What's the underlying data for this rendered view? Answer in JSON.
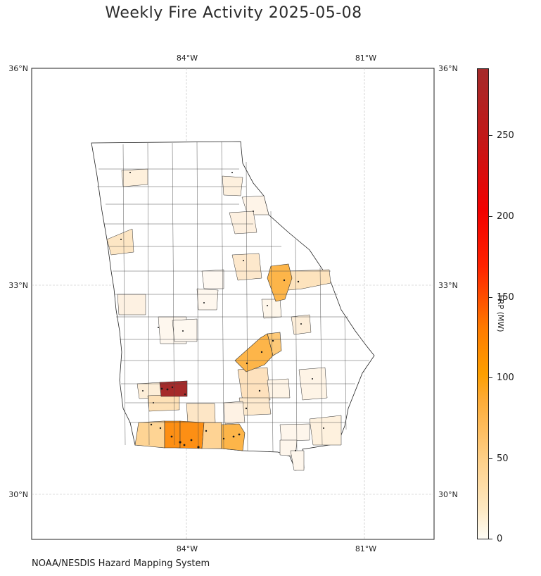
{
  "title": "Weekly Fire Activity 2025-05-08",
  "credit": "NOAA/NESDIS Hazard Mapping System",
  "map": {
    "region": "Georgia counties",
    "lon_range": [
      -86.6,
      -79.8
    ],
    "lat_range": [
      29.6,
      36.0
    ],
    "top_lon_labels": [
      "84°W",
      "81°W"
    ],
    "bottom_lon_labels": [
      "84°W",
      "81°W"
    ],
    "left_lat_labels": [
      "36°N",
      "33°N",
      "30°N"
    ],
    "right_lat_labels": [
      "36°N",
      "33°N",
      "30°N"
    ],
    "gridlines": true
  },
  "colorbar": {
    "label": "FRP (MW)",
    "range": [
      0,
      290
    ],
    "ticks": [
      "0",
      "50",
      "100",
      "150",
      "200",
      "250"
    ],
    "colors": [
      "#fffdf6",
      "#fecf87",
      "#fd9f00",
      "#ff2200",
      "#f20000",
      "#a52a2a"
    ]
  },
  "highlighted_counties": [
    {
      "area": "southwest Georgia (Lee/Dougherty area)",
      "frp": 290,
      "color": "#a52a2a"
    },
    {
      "area": "south Georgia (Mitchell/Colquitt area)",
      "frp": 82,
      "color": "#fd8f14"
    },
    {
      "area": "south-central Georgia",
      "frp": 70,
      "color": "#fdb549"
    },
    {
      "area": "central Georgia (Washington area)",
      "frp": 70,
      "color": "#fdb549"
    },
    {
      "area": "east-central Georgia (Jefferson area)",
      "frp": 60,
      "color": "#fdbf62"
    }
  ]
}
